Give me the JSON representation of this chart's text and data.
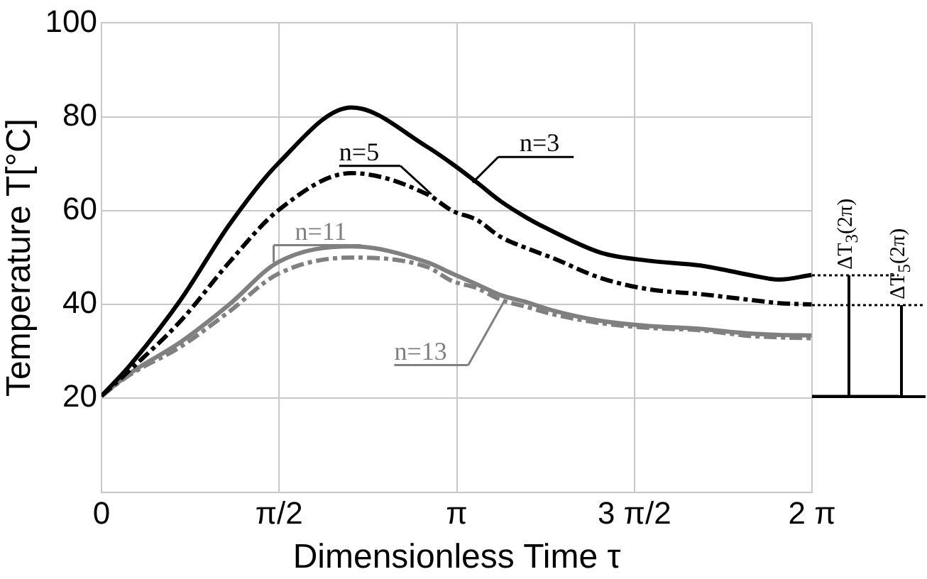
{
  "chart_data": {
    "type": "line",
    "xlabel": "Dimensionless Time τ",
    "ylabel": "Temperature T[°C]",
    "x": [
      0,
      0.25,
      0.7,
      1.13,
      1.56,
      2.21,
      2.88,
      3.1,
      3.32,
      3.53,
      3.76,
      3.98,
      4.42,
      4.85,
      5.3,
      5.73,
      5.99,
      6.28
    ],
    "series": [
      {
        "name": "n=3",
        "color": "#000000",
        "line_style": "solid",
        "values": [
          20.5,
          27,
          41,
          57,
          70,
          82,
          73.6,
          70,
          66,
          62,
          58.5,
          55.7,
          51,
          49.3,
          48.3,
          46.3,
          45.3,
          46.3
        ]
      },
      {
        "name": "n=5",
        "color": "#000000",
        "line_style": "dashdot",
        "values": [
          20.5,
          26,
          36.5,
          49,
          60,
          68,
          63.5,
          60,
          58,
          54.4,
          52,
          50,
          45.6,
          43.2,
          42.2,
          41,
          40.3,
          40
        ]
      },
      {
        "name": "n=11",
        "color": "#808080",
        "line_style": "solid",
        "values": [
          20.5,
          25.3,
          32,
          40,
          49,
          52.4,
          49,
          46.6,
          44.3,
          42,
          40.5,
          38.8,
          36.5,
          35.4,
          34.8,
          33.8,
          33.5,
          33.4
        ]
      },
      {
        "name": "n=13",
        "color": "#808080",
        "line_style": "dashdot",
        "values": [
          20.5,
          25,
          31,
          38.5,
          46.5,
          50,
          48,
          45,
          43.5,
          41,
          39.5,
          38,
          36,
          35,
          34.5,
          33.3,
          33,
          32.8
        ]
      }
    ],
    "xlim": [
      0,
      6.2832
    ],
    "xticks": [
      0,
      {
        "value": 1.5708,
        "label": "π/2"
      },
      {
        "value": 3.1416,
        "label": "π"
      },
      {
        "value": 4.7124,
        "label": "3 π/2"
      },
      {
        "value": 6.2832,
        "label": "2 π"
      }
    ],
    "ylim": [
      0,
      100
    ],
    "yticks": [
      20,
      40,
      60,
      80,
      100
    ],
    "grid": true,
    "legend": false,
    "marker": "none",
    "annotations": [
      {
        "text": "ΔT$_{3}$(2π)",
        "x": 6.2832,
        "y": 46.3
      },
      {
        "text": "ΔT$_{5}$(2π)",
        "x": 6.2832,
        "y": 40
      }
    ]
  }
}
